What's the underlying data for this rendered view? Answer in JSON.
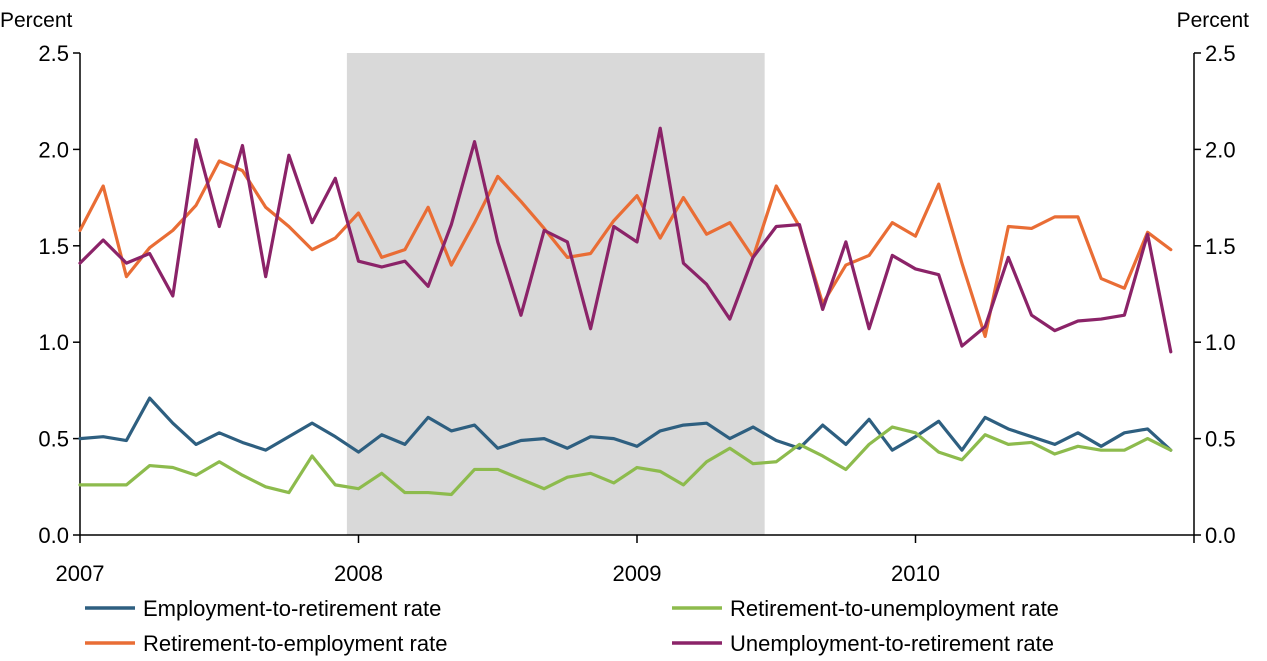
{
  "chart_data": {
    "type": "line",
    "left_axis_label": "Percent",
    "right_axis_label": "Percent",
    "ylim": [
      0,
      2.5
    ],
    "y_ticks": [
      "0.0",
      "0.5",
      "1.0",
      "1.5",
      "2.0",
      "2.5"
    ],
    "x_tick_labels": [
      "2007",
      "2008",
      "2009",
      "2010"
    ],
    "x_start": "2007-01",
    "recession_shading": {
      "start": "2007-12",
      "end": "2009-06"
    },
    "legend_position": "bottom",
    "series": [
      {
        "name": "Employment-to-retirement rate",
        "color": "#2e5f80",
        "values": [
          0.5,
          0.51,
          0.49,
          0.71,
          0.58,
          0.47,
          0.53,
          0.48,
          0.44,
          0.51,
          0.58,
          0.51,
          0.43,
          0.52,
          0.47,
          0.61,
          0.54,
          0.57,
          0.45,
          0.49,
          0.5,
          0.45,
          0.51,
          0.5,
          0.46,
          0.54,
          0.57,
          0.58,
          0.5,
          0.56,
          0.49,
          0.45,
          0.57,
          0.47,
          0.6,
          0.44,
          0.51,
          0.59,
          0.44,
          0.61,
          0.55,
          0.51,
          0.47,
          0.53,
          0.46,
          0.53,
          0.55,
          0.44
        ]
      },
      {
        "name": "Retirement-to-unemployment rate",
        "color": "#8dbb4d",
        "values": [
          0.26,
          0.26,
          0.26,
          0.36,
          0.35,
          0.31,
          0.38,
          0.31,
          0.25,
          0.22,
          0.41,
          0.26,
          0.24,
          0.32,
          0.22,
          0.22,
          0.21,
          0.34,
          0.34,
          0.29,
          0.24,
          0.3,
          0.32,
          0.27,
          0.35,
          0.33,
          0.26,
          0.38,
          0.45,
          0.37,
          0.38,
          0.47,
          0.41,
          0.34,
          0.47,
          0.56,
          0.53,
          0.43,
          0.39,
          0.52,
          0.47,
          0.48,
          0.42,
          0.46,
          0.44,
          0.44,
          0.5,
          0.44
        ]
      },
      {
        "name": "Retirement-to-employment rate",
        "color": "#e96d35",
        "values": [
          1.58,
          1.81,
          1.34,
          1.49,
          1.58,
          1.71,
          1.94,
          1.89,
          1.7,
          1.6,
          1.48,
          1.54,
          1.67,
          1.44,
          1.48,
          1.7,
          1.4,
          1.62,
          1.86,
          1.73,
          1.59,
          1.44,
          1.46,
          1.63,
          1.76,
          1.54,
          1.75,
          1.56,
          1.62,
          1.44,
          1.81,
          1.6,
          1.2,
          1.4,
          1.45,
          1.62,
          1.55,
          1.82,
          1.41,
          1.03,
          1.6,
          1.59,
          1.65,
          1.65,
          1.33,
          1.28,
          1.57,
          1.48
        ]
      },
      {
        "name": "Unemployment-to-retirement rate",
        "color": "#8b2368",
        "values": [
          1.41,
          1.53,
          1.41,
          1.46,
          1.24,
          2.05,
          1.6,
          2.02,
          1.34,
          1.97,
          1.62,
          1.85,
          1.42,
          1.39,
          1.42,
          1.29,
          1.61,
          2.04,
          1.52,
          1.14,
          1.58,
          1.52,
          1.07,
          1.6,
          1.52,
          2.11,
          1.41,
          1.3,
          1.12,
          1.44,
          1.6,
          1.61,
          1.17,
          1.52,
          1.07,
          1.45,
          1.38,
          1.35,
          0.98,
          1.08,
          1.44,
          1.14,
          1.06,
          1.11,
          1.12,
          1.14,
          1.56,
          0.95
        ]
      }
    ]
  }
}
